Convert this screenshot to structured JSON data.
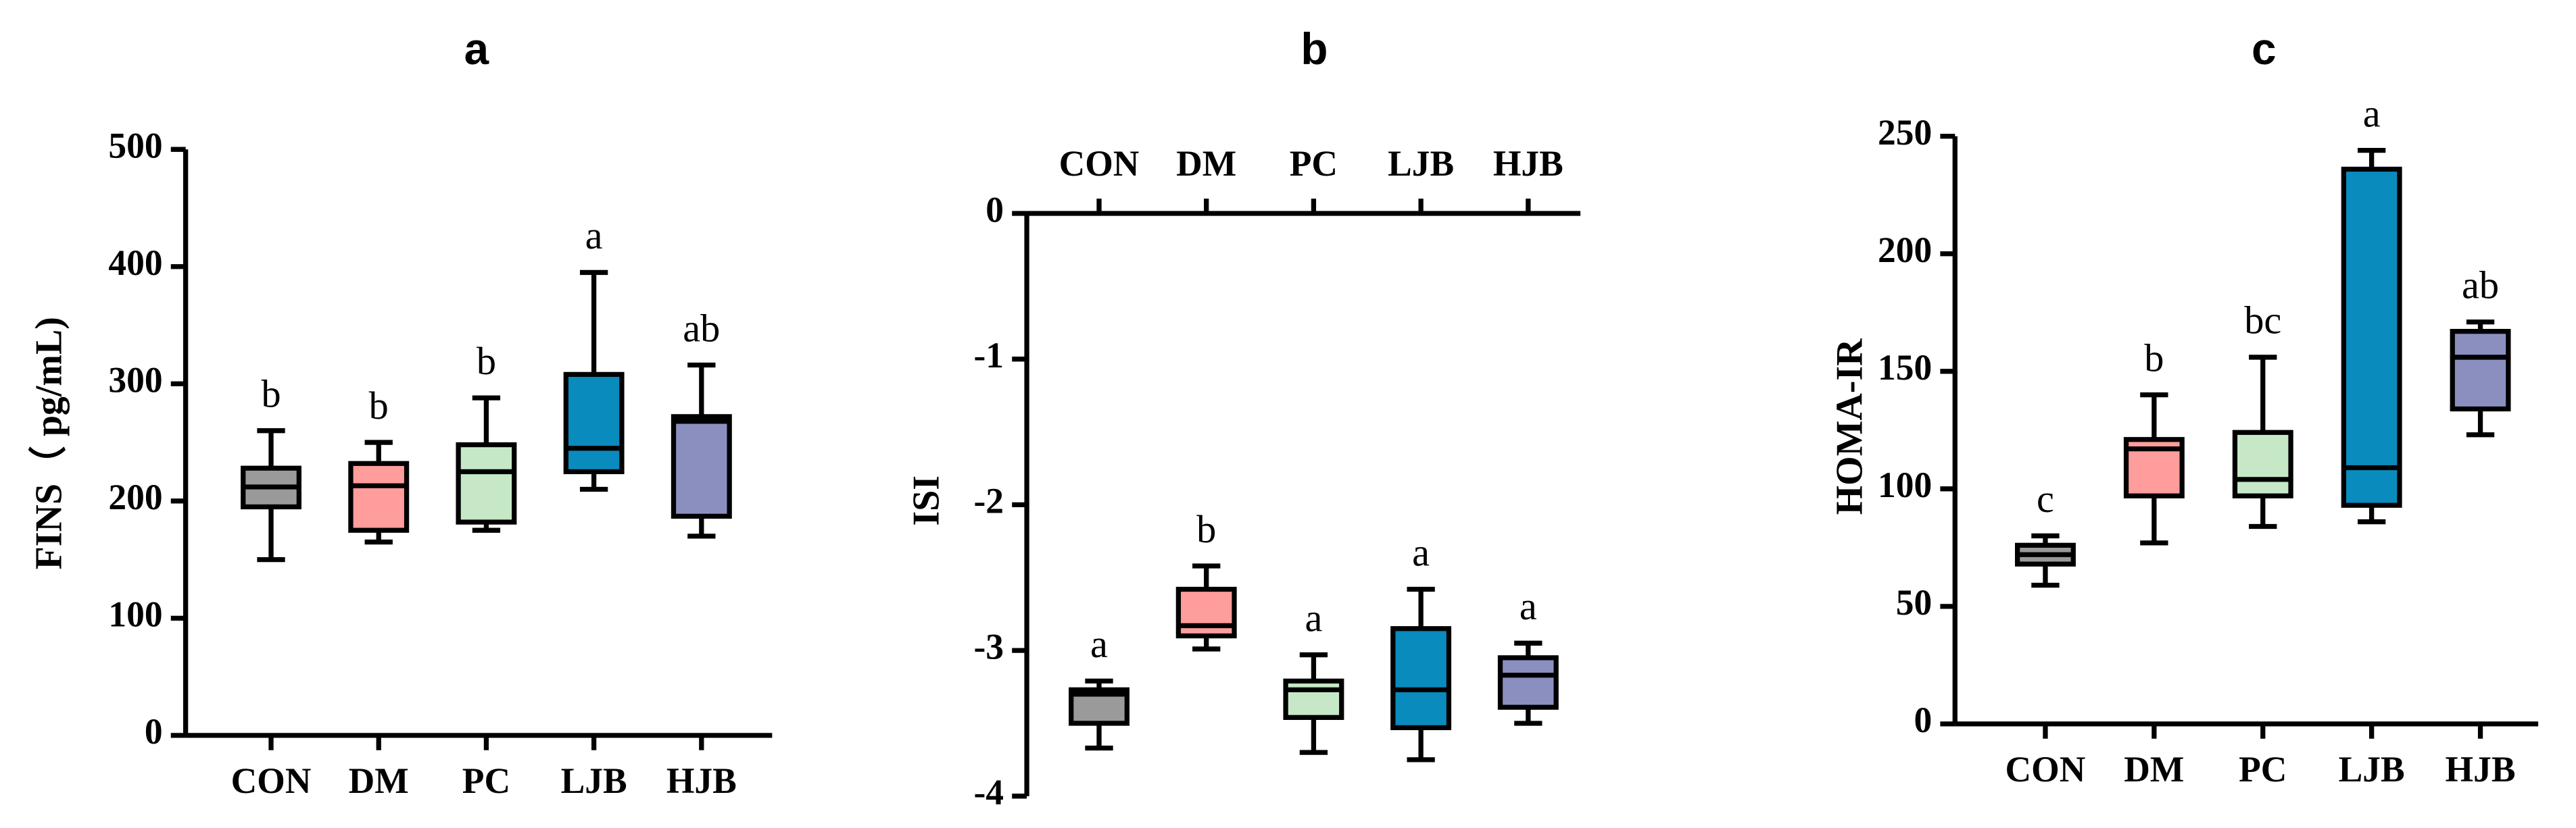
{
  "chart_data": [
    {
      "type": "box",
      "title": "a",
      "y_label": "FINS（ pg/mL)",
      "categories": [
        "CON",
        "DM",
        "PC",
        "LJB",
        "HJB"
      ],
      "colors": [
        "#9a9a9a",
        "#ff9c9c",
        "#c6e8c6",
        "#0a8bbd",
        "#8b8fc0"
      ],
      "whisker_low": [
        150,
        165,
        175,
        210,
        170
      ],
      "q1": [
        195,
        175,
        182,
        225,
        187
      ],
      "median": [
        212,
        213,
        225,
        245,
        268
      ],
      "q3": [
        228,
        232,
        248,
        308,
        272
      ],
      "whisker_high": [
        260,
        250,
        288,
        395,
        316
      ],
      "annotations": [
        "b",
        "b",
        "b",
        "a",
        "ab"
      ],
      "ylim": [
        0,
        500
      ],
      "yticks": [
        0,
        100,
        200,
        300,
        400,
        500
      ],
      "x_axis_position": "bottom"
    },
    {
      "type": "box",
      "title": "b",
      "y_label": "ISI",
      "categories": [
        "CON",
        "DM",
        "PC",
        "LJB",
        "HJB"
      ],
      "colors": [
        "#9a9a9a",
        "#ff9c9c",
        "#c6e8c6",
        "#0a8bbd",
        "#8b8fc0"
      ],
      "whisker_low": [
        -3.67,
        -2.99,
        -3.7,
        -3.75,
        -3.5
      ],
      "q1": [
        -3.5,
        -2.9,
        -3.46,
        -3.53,
        -3.39
      ],
      "median": [
        -3.3,
        -2.83,
        -3.27,
        -3.27,
        -3.17
      ],
      "q3": [
        -3.27,
        -2.58,
        -3.21,
        -2.85,
        -3.05
      ],
      "whisker_high": [
        -3.21,
        -2.42,
        -3.03,
        -2.58,
        -2.95
      ],
      "annotations": [
        "a",
        "b",
        "a",
        "a",
        "a"
      ],
      "ylim": [
        -4,
        0
      ],
      "yticks": [
        0,
        -1,
        -2,
        -3,
        -4
      ],
      "x_axis_position": "top"
    },
    {
      "type": "box",
      "title": "c",
      "y_label": "HOMA-IR",
      "categories": [
        "CON",
        "DM",
        "PC",
        "LJB",
        "HJB"
      ],
      "colors": [
        "#9a9a9a",
        "#ff9c9c",
        "#c6e8c6",
        "#0a8bbd",
        "#8b8fc0"
      ],
      "whisker_low": [
        59,
        77,
        84,
        86,
        123
      ],
      "q1": [
        68,
        97,
        97,
        93,
        134
      ],
      "median": [
        72,
        117,
        104,
        109,
        156
      ],
      "q3": [
        76,
        121,
        124,
        236,
        167
      ],
      "whisker_high": [
        80,
        140,
        156,
        244,
        171
      ],
      "annotations": [
        "c",
        "b",
        "bc",
        "a",
        "ab"
      ],
      "ylim": [
        0,
        250
      ],
      "yticks": [
        0,
        50,
        100,
        150,
        200,
        250
      ],
      "x_axis_position": "bottom"
    }
  ]
}
